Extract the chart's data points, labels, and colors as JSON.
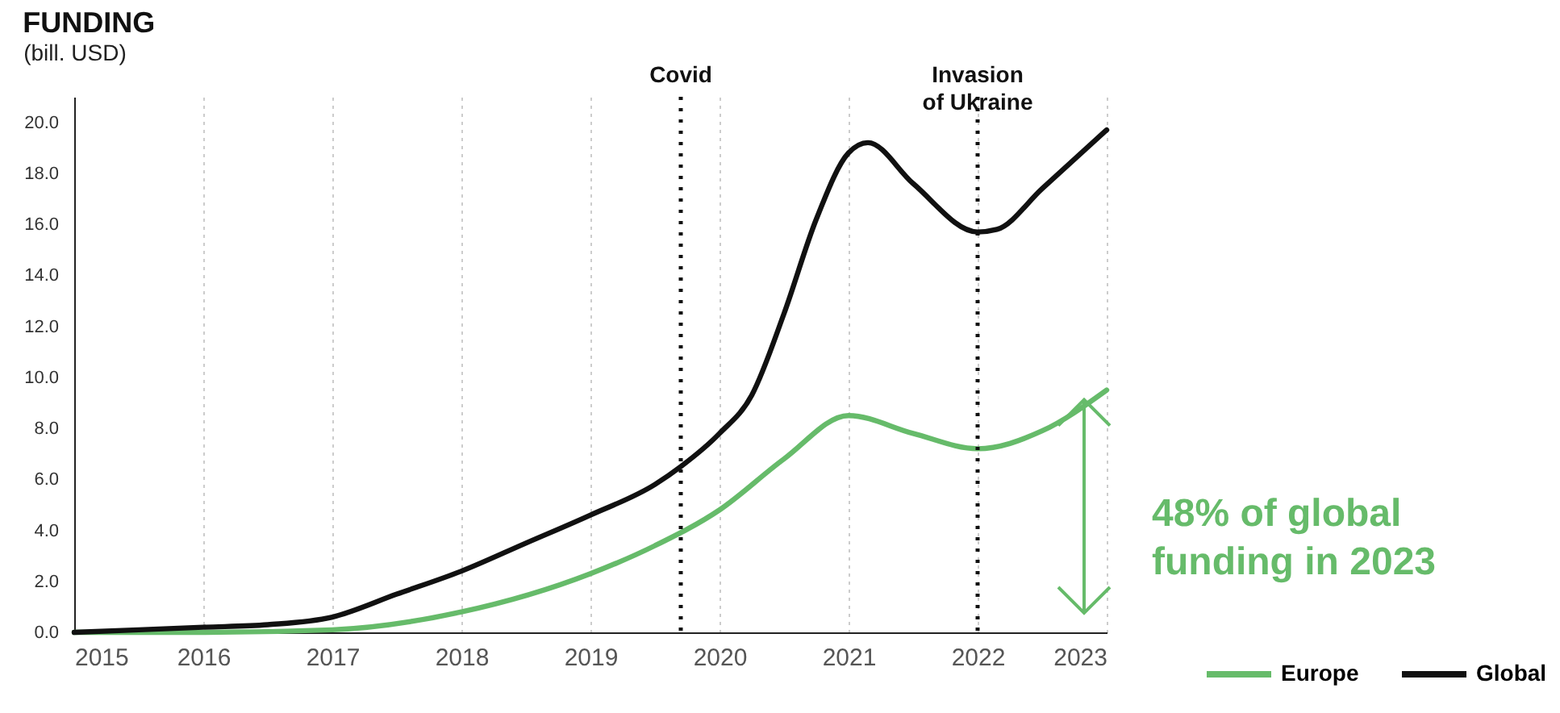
{
  "chart_data": {
    "type": "line",
    "title": "FUNDING",
    "ylabel": "(bill. USD)",
    "xlim": [
      2015,
      2023
    ],
    "xticks": [
      2015,
      2016,
      2017,
      2018,
      2019,
      2020,
      2021,
      2022,
      2023
    ],
    "ylim": [
      0,
      21
    ],
    "yticks": [
      {
        "value": 0,
        "label": "0.0"
      },
      {
        "value": 2,
        "label": "2.0"
      },
      {
        "value": 4,
        "label": "4.0"
      },
      {
        "value": 6,
        "label": "6.0"
      },
      {
        "value": 8,
        "label": "8.0"
      },
      {
        "value": 10,
        "label": "10.0"
      },
      {
        "value": 12,
        "label": "12.0"
      },
      {
        "value": 14,
        "label": "14.0"
      },
      {
        "value": 16,
        "label": "16.0"
      },
      {
        "value": 18,
        "label": "18.0"
      },
      {
        "value": 20,
        "label": "20.0"
      }
    ],
    "grid": "x",
    "legend": "bottom right",
    "line_style": "solid",
    "marker": "none",
    "series": [
      {
        "name": "Europe",
        "color": "#66bb6a",
        "x": [
          2015,
          2016,
          2017,
          2018,
          2019,
          2019.5,
          2020,
          2020.5,
          2021,
          2021.5,
          2022,
          2022.5,
          2023
        ],
        "values": [
          0,
          0,
          0.1,
          0.8,
          2.3,
          3.4,
          4.8,
          6.8,
          8.5,
          7.8,
          7.2,
          7.9,
          9.5
        ]
      },
      {
        "name": "Global",
        "color": "#111111",
        "x": [
          2015,
          2016,
          2016.5,
          2017,
          2017.5,
          2018,
          2018.5,
          2019,
          2019.5,
          2019.7,
          2020,
          2020.25,
          2020.5,
          2020.75,
          2021,
          2021.15,
          2021.5,
          2022,
          2022.15,
          2022.5,
          2023
        ],
        "values": [
          0,
          0.2,
          0.3,
          0.6,
          1.5,
          2.4,
          3.5,
          4.6,
          5.8,
          6.5,
          7.8,
          9.3,
          12.5,
          16.2,
          18.8,
          19.2,
          17.6,
          15.7,
          15.8,
          17.4,
          19.7
        ]
      }
    ],
    "ref_lines": [
      {
        "axis": "x",
        "value": 2019.7,
        "label": "Covid",
        "line_style": "dotted",
        "color": "#111111"
      },
      {
        "axis": "x",
        "value": 2022,
        "label": "Invasion\nof Ukraine",
        "line_style": "dotted",
        "color": "#111111"
      }
    ],
    "annotations": [
      "48% of global\nfunding in 2023"
    ]
  }
}
